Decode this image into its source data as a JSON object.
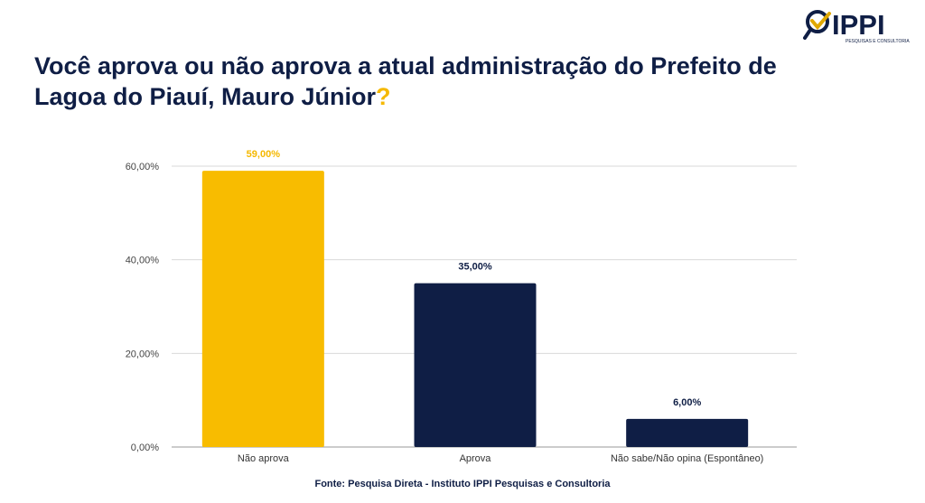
{
  "title": {
    "text": "Você aprova ou não aprova a atual administração do Prefeito de Lagoa do Piauí, Mauro Júnior",
    "punct": "?"
  },
  "logo": {
    "name": "IPPI",
    "subtitle": "PESQUISAS E CONSULTORIA"
  },
  "source": "Fonte: Pesquisa Direta - Instituto IPPI Pesquisas e Consultoria",
  "colors": {
    "navy": "#0f1e45",
    "yellow": "#f8bc00"
  },
  "chart_data": {
    "type": "bar",
    "title": "Você aprova ou não aprova a atual administração do Prefeito de Lagoa do Piauí, Mauro Júnior?",
    "categories": [
      "Não aprova",
      "Aprova",
      "Não sabe/Não opina (Espontâneo)"
    ],
    "values": [
      59,
      35,
      6
    ],
    "data_labels": [
      "59,00%",
      "35,00%",
      "6,00%"
    ],
    "bar_colors": [
      "#f8bc00",
      "#0f1e45",
      "#0f1e45"
    ],
    "label_colors": [
      "#f5b800",
      "#0f1e45",
      "#0f1e45"
    ],
    "yticks": [
      0,
      20,
      40,
      60
    ],
    "ytick_labels": [
      "0,00%",
      "20,00%",
      "40,00%",
      "60,00%"
    ],
    "ylim": [
      0,
      60
    ],
    "grid": true,
    "xlabel": "",
    "ylabel": ""
  }
}
